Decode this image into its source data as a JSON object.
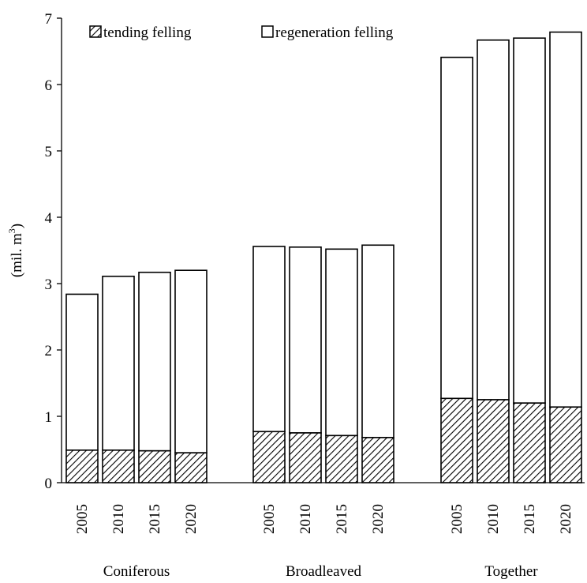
{
  "chart_data": {
    "type": "bar",
    "stacked": true,
    "ylabel": "(mil. m3)",
    "ylabel_main": "(mil. m",
    "ylabel_sup": "3",
    "ylabel_close": ")",
    "ylim": [
      0,
      7
    ],
    "yticks": [
      "0",
      "1",
      "2",
      "3",
      "4",
      "5",
      "6",
      "7"
    ],
    "legend_placement": "top",
    "groups": [
      {
        "label": "Coniferous",
        "categories": [
          "2005",
          "2010",
          "2015",
          "2020"
        ],
        "tending": [
          0.49,
          0.49,
          0.48,
          0.45
        ],
        "regeneration": [
          2.35,
          2.62,
          2.69,
          2.75
        ]
      },
      {
        "label": "Broadleaved",
        "categories": [
          "2005",
          "2010",
          "2015",
          "2020"
        ],
        "tending": [
          0.77,
          0.75,
          0.71,
          0.68
        ],
        "regeneration": [
          2.79,
          2.8,
          2.81,
          2.9
        ]
      },
      {
        "label": "Together",
        "categories": [
          "2005",
          "2010",
          "2015",
          "2020"
        ],
        "tending": [
          1.27,
          1.25,
          1.2,
          1.14
        ],
        "regeneration": [
          5.14,
          5.42,
          5.5,
          5.65
        ]
      }
    ],
    "series": [
      {
        "name": "tending felling",
        "fill": "hatched"
      },
      {
        "name": "regeneration felling",
        "fill": "#ffffff"
      }
    ]
  }
}
